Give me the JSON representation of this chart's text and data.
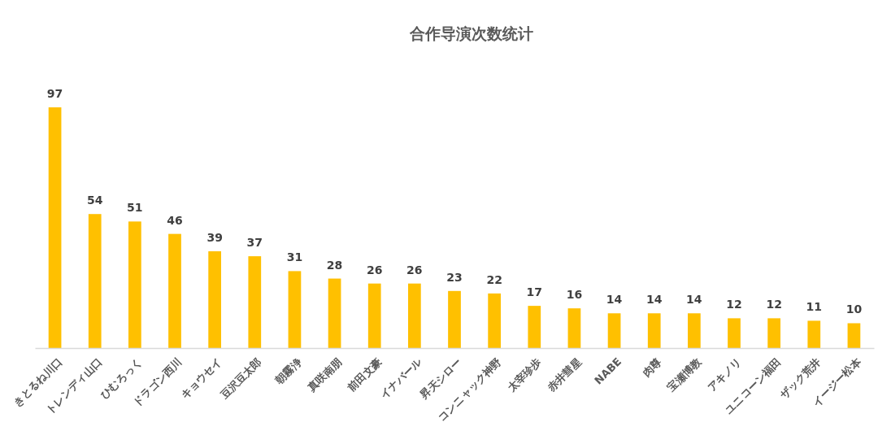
{
  "chart_data": {
    "type": "bar",
    "title": "合作导演次数统计",
    "categories": [
      "きとるね川口",
      "トレンディ山口",
      "ひむろっく",
      "ドラゴン西川",
      "キョウセイ",
      "豆沢豆太郎",
      "朝霧浄",
      "真咲南朋",
      "前田文豪",
      "イナバール",
      "昇天シロー",
      "コンニャック神野",
      "太宰珍歩",
      "赤井彗星",
      "NABE",
      "肉尊",
      "宝瀬博教",
      "アキノリ",
      "ユニコーン福田",
      "ザック荒井",
      "イージー松本"
    ],
    "values": [
      97,
      54,
      51,
      46,
      39,
      37,
      31,
      28,
      26,
      26,
      23,
      22,
      17,
      16,
      14,
      14,
      14,
      12,
      12,
      11,
      10
    ],
    "color": "#ffc000",
    "data_labels": true
  }
}
